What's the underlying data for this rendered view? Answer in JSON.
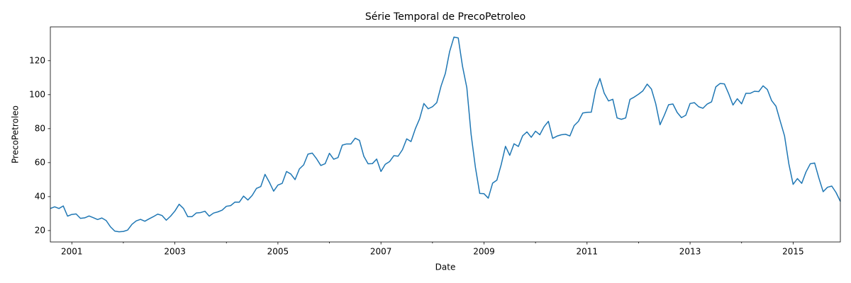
{
  "chart_data": {
    "type": "line",
    "title": "Série Temporal de PrecoPetroleo",
    "x_label": "Date",
    "y_label": "PrecoPetroleo",
    "color": "#1f77b4",
    "xlim": [
      2000.583,
      2015.917
    ],
    "ylim": [
      13.3,
      139.9
    ],
    "xticks": [
      2001,
      2003,
      2005,
      2007,
      2009,
      2011,
      2013,
      2015
    ],
    "xminor_ticks": [
      2002,
      2004,
      2006,
      2008,
      2010,
      2012,
      2014
    ],
    "yticks": [
      20,
      40,
      60,
      80,
      100,
      120
    ],
    "x": [
      2000.583,
      2000.667,
      2000.75,
      2000.833,
      2000.917,
      2001,
      2001.083,
      2001.167,
      2001.25,
      2001.333,
      2001.417,
      2001.5,
      2001.583,
      2001.667,
      2001.75,
      2001.833,
      2001.917,
      2002,
      2002.083,
      2002.167,
      2002.25,
      2002.333,
      2002.417,
      2002.5,
      2002.583,
      2002.667,
      2002.75,
      2002.833,
      2002.917,
      2003,
      2003.083,
      2003.167,
      2003.25,
      2003.333,
      2003.417,
      2003.5,
      2003.583,
      2003.667,
      2003.75,
      2003.833,
      2003.917,
      2004,
      2004.083,
      2004.167,
      2004.25,
      2004.333,
      2004.417,
      2004.5,
      2004.583,
      2004.667,
      2004.75,
      2004.833,
      2004.917,
      2005,
      2005.083,
      2005.167,
      2005.25,
      2005.333,
      2005.417,
      2005.5,
      2005.583,
      2005.667,
      2005.75,
      2005.833,
      2005.917,
      2006,
      2006.083,
      2006.167,
      2006.25,
      2006.333,
      2006.417,
      2006.5,
      2006.583,
      2006.667,
      2006.75,
      2006.833,
      2006.917,
      2007,
      2007.083,
      2007.167,
      2007.25,
      2007.333,
      2007.417,
      2007.5,
      2007.583,
      2007.667,
      2007.75,
      2007.833,
      2007.917,
      2008,
      2008.083,
      2008.167,
      2008.25,
      2008.333,
      2008.417,
      2008.5,
      2008.583,
      2008.667,
      2008.75,
      2008.833,
      2008.917,
      2009,
      2009.083,
      2009.167,
      2009.25,
      2009.333,
      2009.417,
      2009.5,
      2009.583,
      2009.667,
      2009.75,
      2009.833,
      2009.917,
      2010,
      2010.083,
      2010.167,
      2010.25,
      2010.333,
      2010.417,
      2010.5,
      2010.583,
      2010.667,
      2010.75,
      2010.833,
      2010.917,
      2011,
      2011.083,
      2011.167,
      2011.25,
      2011.333,
      2011.417,
      2011.5,
      2011.583,
      2011.667,
      2011.75,
      2011.833,
      2011.917,
      2012,
      2012.083,
      2012.167,
      2012.25,
      2012.333,
      2012.417,
      2012.5,
      2012.583,
      2012.667,
      2012.75,
      2012.833,
      2012.917,
      2013,
      2013.083,
      2013.167,
      2013.25,
      2013.333,
      2013.417,
      2013.5,
      2013.583,
      2013.667,
      2013.75,
      2013.833,
      2013.917,
      2014,
      2014.083,
      2014.167,
      2014.25,
      2014.333,
      2014.417,
      2014.5,
      2014.583,
      2014.667,
      2014.75,
      2014.833,
      2014.917,
      2015,
      2015.083,
      2015.167,
      2015.25,
      2015.333,
      2015.417,
      2015.5,
      2015.583,
      2015.667,
      2015.75,
      2015.833,
      2015.917
    ],
    "values": [
      33,
      34,
      33,
      34.5,
      28.5,
      29.5,
      29.8,
      27.2,
      27.5,
      28.6,
      27.6,
      26.5,
      27.4,
      25.9,
      22.2,
      19.7,
      19.3,
      19.5,
      20.3,
      23.7,
      25.7,
      26.6,
      25.5,
      26.9,
      28.2,
      29.7,
      28.9,
      26.1,
      28.5,
      31.5,
      35.5,
      33,
      28.2,
      28.2,
      30.4,
      30.6,
      31.4,
      28.5,
      30.3,
      31,
      32,
      34.3,
      34.7,
      36.8,
      36.7,
      40.3,
      38,
      40.7,
      44.8,
      45.9,
      53.1,
      48.5,
      43.2,
      46.8,
      47.8,
      54.8,
      53.3,
      50,
      56.3,
      58.7,
      65,
      65.6,
      62.3,
      58.3,
      59.4,
      65.5,
      62,
      63,
      70.3,
      71,
      71,
      74.4,
      73.1,
      63.8,
      59.3,
      59.4,
      62.1,
      54.8,
      59,
      60.6,
      64.1,
      63.8,
      67.6,
      74,
      72.4,
      79.9,
      85.8,
      94.8,
      91.7,
      92.9,
      95.3,
      105.1,
      112.5,
      125.4,
      133.9,
      133.4,
      116.7,
      104.1,
      76.6,
      57.3,
      41.9,
      41.7,
      39.1,
      47.9,
      49.7,
      58.7,
      69.6,
      64.3,
      71.1,
      69.5,
      75.8,
      78.1,
      74.9,
      78.5,
      76.4,
      81.2,
      84.3,
      74.3,
      75.6,
      76.4,
      76.7,
      75.7,
      81.8,
      84.3,
      89.2,
      89.6,
      89.7,
      102.9,
      109.5,
      100.9,
      96.3,
      97.3,
      86.3,
      85.5,
      86.3,
      97.2,
      98.6,
      100.3,
      102.2,
      106.2,
      103.3,
      94.7,
      82.3,
      87.9,
      94.1,
      94.5,
      89.5,
      86.5,
      87.9,
      94.8,
      95.3,
      92.9,
      92,
      94.5,
      95.8,
      104.6,
      106.6,
      106.3,
      100.5,
      93.9,
      97.6,
      94.6,
      100.8,
      100.8,
      102,
      101.8,
      105.2,
      103,
      96.5,
      93.2,
      84.4,
      75.8,
      59.3,
      47.2,
      50.6,
      47.8,
      54.5,
      59.3,
      59.8,
      50.9,
      42.9,
      45.5,
      46.2,
      42.4,
      37.2
    ]
  }
}
